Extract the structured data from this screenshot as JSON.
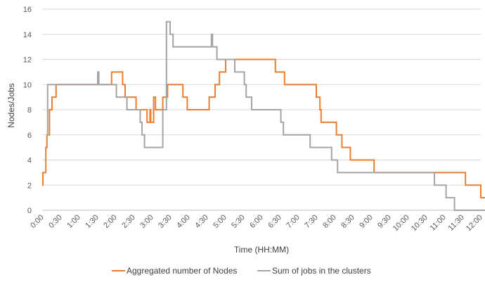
{
  "chart_data": {
    "type": "line",
    "title": "",
    "xlabel": "Time (HH:MM)",
    "ylabel": "Nodes/Jobs",
    "xlim": [
      0,
      12
    ],
    "ylim": [
      0,
      16
    ],
    "ystep": 2,
    "x_tick_labels": [
      "0:00",
      "0:30",
      "1:00",
      "1:30",
      "2:00",
      "2:30",
      "3:00",
      "3:30",
      "4:00",
      "4:30",
      "5:00",
      "5:30",
      "6:00",
      "6:30",
      "7:00",
      "7:30",
      "8:00",
      "8:30",
      "9:00",
      "9:30",
      "10:00",
      "10:30",
      "11:00",
      "11:30",
      "12:00"
    ],
    "grid": "horizontal",
    "legend_position": "bottom",
    "step": true,
    "series": [
      {
        "name": "Aggregated number of Nodes",
        "color": "#ED7D31",
        "points": [
          [
            0.0,
            2
          ],
          [
            0.02,
            3
          ],
          [
            0.1,
            5
          ],
          [
            0.13,
            6
          ],
          [
            0.2,
            8
          ],
          [
            0.27,
            9
          ],
          [
            0.38,
            10
          ],
          [
            1.58,
            10
          ],
          [
            1.9,
            11
          ],
          [
            2.2,
            10
          ],
          [
            2.27,
            9
          ],
          [
            2.57,
            8
          ],
          [
            2.87,
            7
          ],
          [
            2.95,
            8
          ],
          [
            2.97,
            7
          ],
          [
            3.05,
            9
          ],
          [
            3.1,
            8
          ],
          [
            3.3,
            9
          ],
          [
            3.43,
            10
          ],
          [
            3.85,
            9
          ],
          [
            3.97,
            8
          ],
          [
            4.57,
            9
          ],
          [
            4.73,
            10
          ],
          [
            4.85,
            11
          ],
          [
            5.02,
            12
          ],
          [
            6.38,
            11
          ],
          [
            6.63,
            10
          ],
          [
            7.5,
            9
          ],
          [
            7.6,
            8
          ],
          [
            7.63,
            7
          ],
          [
            8.05,
            6
          ],
          [
            8.2,
            5
          ],
          [
            8.43,
            4
          ],
          [
            9.08,
            3
          ],
          [
            10.1,
            3
          ],
          [
            11.58,
            2
          ],
          [
            12.0,
            1
          ],
          [
            12.23,
            0
          ]
        ]
      },
      {
        "name": "Sum of jobs in the clusters",
        "color": "#A5A5A5",
        "points": [
          [
            0.12,
            6
          ],
          [
            0.15,
            10
          ],
          [
            1.33,
            10
          ],
          [
            1.52,
            11
          ],
          [
            1.55,
            10
          ],
          [
            2.03,
            9
          ],
          [
            2.32,
            8
          ],
          [
            2.68,
            7
          ],
          [
            2.73,
            6
          ],
          [
            2.8,
            5
          ],
          [
            3.3,
            8
          ],
          [
            3.4,
            15
          ],
          [
            3.5,
            14
          ],
          [
            3.58,
            13
          ],
          [
            4.63,
            14
          ],
          [
            4.66,
            13
          ],
          [
            4.78,
            12
          ],
          [
            4.87,
            12
          ],
          [
            5.02,
            12
          ],
          [
            5.27,
            11
          ],
          [
            5.53,
            10
          ],
          [
            5.58,
            9
          ],
          [
            5.73,
            8
          ],
          [
            6.53,
            7
          ],
          [
            6.6,
            6
          ],
          [
            7.33,
            5
          ],
          [
            7.92,
            4
          ],
          [
            8.08,
            3
          ],
          [
            10.13,
            3
          ],
          [
            10.73,
            2
          ],
          [
            11.05,
            1
          ],
          [
            11.28,
            0
          ],
          [
            12.23,
            0
          ]
        ]
      }
    ]
  }
}
